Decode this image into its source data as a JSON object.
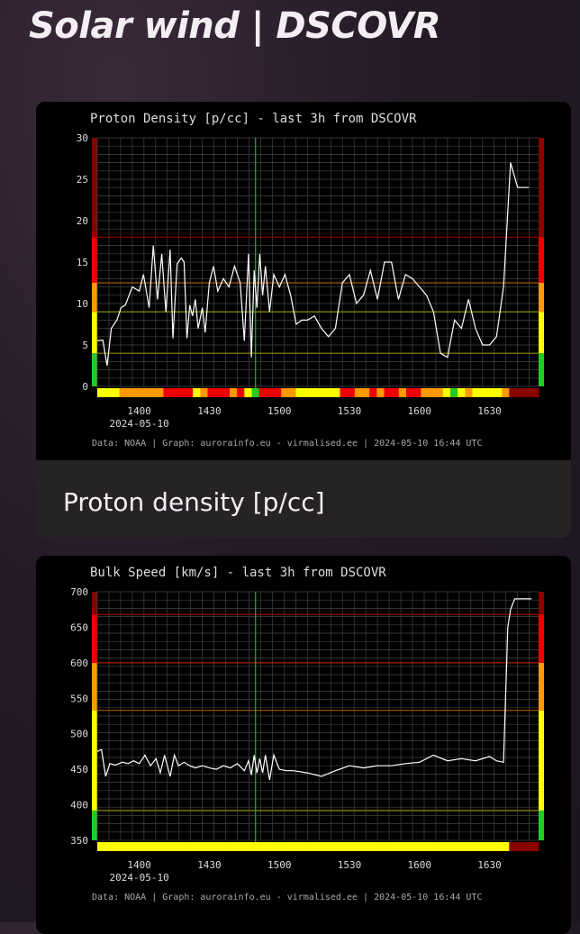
{
  "page": {
    "title": "Solar wind | DSCOVR"
  },
  "cards": [
    {
      "caption": "Proton density [p/cc]"
    },
    {
      "caption": ""
    }
  ],
  "colors": {
    "green": "#22cc22",
    "yellow": "#ffff00",
    "orange": "#ff9900",
    "red": "#ee0000",
    "darkred": "#880000",
    "grid": "#444444",
    "line": "#ffffff",
    "vline": "#33cc33",
    "text": "#dddddd",
    "footer": "#aaaaaa"
  },
  "chart_data": [
    {
      "type": "line",
      "title": "Proton Density [p/cc] - last 3h from DSCOVR",
      "ylim": [
        0,
        30
      ],
      "yticks": [
        0,
        5,
        10,
        15,
        20,
        25,
        30
      ],
      "xlim": [
        13.7,
        16.85
      ],
      "xticks": [
        {
          "v": 14.0,
          "label": "1400"
        },
        {
          "v": 14.5,
          "label": "1430"
        },
        {
          "v": 15.0,
          "label": "1500"
        },
        {
          "v": 15.5,
          "label": "1530"
        },
        {
          "v": 16.0,
          "label": "1600"
        },
        {
          "v": 16.5,
          "label": "1630"
        }
      ],
      "date_label": "2024-05-10",
      "footer": "Data: NOAA | Graph: aurorainfo.eu - virmalised.ee | 2024-05-10 16:44 UTC",
      "vline_x": 14.83,
      "thresholds": [
        {
          "y": 4,
          "color": "#888800"
        },
        {
          "y": 9,
          "color": "#999900"
        },
        {
          "y": 12.5,
          "color": "#aa5500"
        },
        {
          "y": 18,
          "color": "#880000"
        }
      ],
      "side_bands": [
        {
          "from": 0,
          "to": 4,
          "color": "#22cc22"
        },
        {
          "from": 4,
          "to": 9,
          "color": "#ffff00"
        },
        {
          "from": 9,
          "to": 12.5,
          "color": "#ff9900"
        },
        {
          "from": 12.5,
          "to": 18,
          "color": "#ee0000"
        },
        {
          "from": 18,
          "to": 30,
          "color": "#880000"
        }
      ],
      "x": [
        13.7,
        13.74,
        13.77,
        13.8,
        13.84,
        13.87,
        13.9,
        13.95,
        14.0,
        14.03,
        14.07,
        14.1,
        14.13,
        14.16,
        14.19,
        14.22,
        14.24,
        14.27,
        14.3,
        14.32,
        14.34,
        14.36,
        14.38,
        14.4,
        14.42,
        14.45,
        14.47,
        14.5,
        14.53,
        14.56,
        14.6,
        14.64,
        14.68,
        14.72,
        14.75,
        14.78,
        14.8,
        14.82,
        14.84,
        14.86,
        14.88,
        14.9,
        14.93,
        14.96,
        15.0,
        15.04,
        15.08,
        15.12,
        15.16,
        15.2,
        15.25,
        15.3,
        15.35,
        15.4,
        15.45,
        15.5,
        15.55,
        15.6,
        15.65,
        15.7,
        15.75,
        15.8,
        15.85,
        15.9,
        15.95,
        16.0,
        16.05,
        16.1,
        16.15,
        16.2,
        16.25,
        16.3,
        16.35,
        16.4,
        16.45,
        16.5,
        16.55,
        16.6,
        16.65,
        16.7,
        16.74,
        16.78
      ],
      "y": [
        5.5,
        5.6,
        2.5,
        7.0,
        8.0,
        9.5,
        9.8,
        12.0,
        11.5,
        13.5,
        9.5,
        17.0,
        10.5,
        16.0,
        9.0,
        16.5,
        5.8,
        14.8,
        15.5,
        15.0,
        5.8,
        9.8,
        8.5,
        10.5,
        7.0,
        9.5,
        6.5,
        12.5,
        14.5,
        11.5,
        13.0,
        12.0,
        14.5,
        12.5,
        5.5,
        16.0,
        3.5,
        14.0,
        9.5,
        16.0,
        11.0,
        14.5,
        9.0,
        13.5,
        12.0,
        13.5,
        11.0,
        7.5,
        8.0,
        8.0,
        8.5,
        7.0,
        6.0,
        7.0,
        12.5,
        13.5,
        10.0,
        11.0,
        14.0,
        10.5,
        15.0,
        15.0,
        10.5,
        13.5,
        13.0,
        12.0,
        11.0,
        9.0,
        4.0,
        3.5,
        8.0,
        7.0,
        10.5,
        7.0,
        5.0,
        5.0,
        6.0,
        12.0,
        27.0,
        24.0,
        24.0,
        24.0
      ]
    },
    {
      "type": "line",
      "title": "Bulk Speed [km/s] - last 3h from DSCOVR",
      "ylim": [
        350,
        700
      ],
      "yticks": [
        350,
        400,
        450,
        500,
        550,
        600,
        650,
        700
      ],
      "xlim": [
        13.7,
        16.85
      ],
      "xticks": [
        {
          "v": 14.0,
          "label": "1400"
        },
        {
          "v": 14.5,
          "label": "1430"
        },
        {
          "v": 15.0,
          "label": "1500"
        },
        {
          "v": 15.5,
          "label": "1530"
        },
        {
          "v": 16.0,
          "label": "1600"
        },
        {
          "v": 16.5,
          "label": "1630"
        }
      ],
      "date_label": "2024-05-10",
      "footer": "Data: NOAA | Graph: aurorainfo.eu - virmalised.ee | 2024-05-10 16:44 UTC",
      "vline_x": 14.83,
      "thresholds": [
        {
          "y": 392,
          "color": "#888800"
        },
        {
          "y": 533,
          "color": "#aa5500"
        },
        {
          "y": 600,
          "color": "#aa2200"
        },
        {
          "y": 668,
          "color": "#880000"
        }
      ],
      "side_bands": [
        {
          "from": 350,
          "to": 392,
          "color": "#22cc22"
        },
        {
          "from": 392,
          "to": 533,
          "color": "#ffff00"
        },
        {
          "from": 533,
          "to": 600,
          "color": "#ff9900"
        },
        {
          "from": 600,
          "to": 668,
          "color": "#ee0000"
        },
        {
          "from": 668,
          "to": 700,
          "color": "#880000"
        }
      ],
      "x": [
        13.7,
        13.73,
        13.76,
        13.79,
        13.83,
        13.88,
        13.92,
        13.96,
        14.0,
        14.04,
        14.08,
        14.12,
        14.15,
        14.18,
        14.22,
        14.25,
        14.28,
        14.32,
        14.36,
        14.4,
        14.45,
        14.5,
        14.55,
        14.6,
        14.65,
        14.7,
        14.75,
        14.78,
        14.8,
        14.82,
        14.84,
        14.86,
        14.88,
        14.9,
        14.93,
        14.96,
        15.0,
        15.05,
        15.1,
        15.2,
        15.3,
        15.4,
        15.5,
        15.6,
        15.7,
        15.8,
        15.9,
        16.0,
        16.1,
        16.2,
        16.3,
        16.4,
        16.5,
        16.55,
        16.6,
        16.63,
        16.65,
        16.68,
        16.72,
        16.76,
        16.8
      ],
      "y": [
        475,
        478,
        440,
        458,
        456,
        460,
        458,
        462,
        458,
        470,
        455,
        465,
        445,
        470,
        440,
        470,
        455,
        460,
        455,
        452,
        455,
        452,
        450,
        455,
        452,
        458,
        448,
        462,
        442,
        470,
        445,
        465,
        445,
        470,
        435,
        470,
        450,
        448,
        448,
        445,
        440,
        448,
        455,
        452,
        455,
        455,
        458,
        460,
        470,
        462,
        465,
        462,
        468,
        462,
        460,
        650,
        675,
        690,
        690,
        690,
        690
      ]
    }
  ]
}
